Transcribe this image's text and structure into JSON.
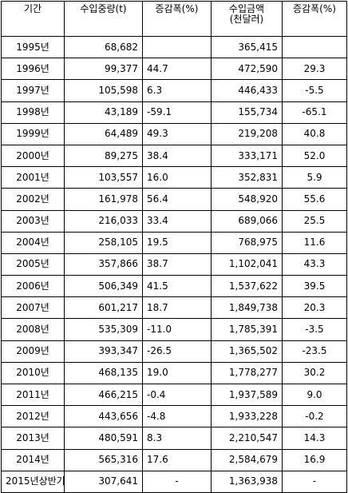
{
  "headers": {
    "year": "기간",
    "weight": "수입중량(t)",
    "weight_change": "증감폭(%)",
    "amount_line1": "수입금액",
    "amount_line2": "(천달러)",
    "amount_change": "증감폭(%)"
  },
  "rows": [
    {
      "year": "1995년",
      "weight": "68,682",
      "weight_change": "",
      "amount": "365,415",
      "amount_change": ""
    },
    {
      "year": "1996년",
      "weight": "99,377",
      "weight_change": "44.7",
      "amount": "472,590",
      "amount_change": "29.3"
    },
    {
      "year": "1997년",
      "weight": "105,598",
      "weight_change": "6.3",
      "amount": "446,433",
      "amount_change": "-5.5"
    },
    {
      "year": "1998년",
      "weight": "43,189",
      "weight_change": "-59.1",
      "amount": "155,734",
      "amount_change": "-65.1"
    },
    {
      "year": "1999년",
      "weight": "64,489",
      "weight_change": "49.3",
      "amount": "219,208",
      "amount_change": "40.8"
    },
    {
      "year": "2000년",
      "weight": "89,275",
      "weight_change": "38.4",
      "amount": "333,171",
      "amount_change": "52.0"
    },
    {
      "year": "2001년",
      "weight": "103,557",
      "weight_change": "16.0",
      "amount": "352,831",
      "amount_change": "5.9"
    },
    {
      "year": "2002년",
      "weight": "161,978",
      "weight_change": "56.4",
      "amount": "548,920",
      "amount_change": "55.6"
    },
    {
      "year": "2003년",
      "weight": "216,033",
      "weight_change": "33.4",
      "amount": "689,066",
      "amount_change": "25.5"
    },
    {
      "year": "2004년",
      "weight": "258,105",
      "weight_change": "19.5",
      "amount": "768,975",
      "amount_change": "11.6"
    },
    {
      "year": "2005년",
      "weight": "357,866",
      "weight_change": "38.7",
      "amount": "1,102,041",
      "amount_change": "43.3"
    },
    {
      "year": "2006년",
      "weight": "506,349",
      "weight_change": "41.5",
      "amount": "1,537,622",
      "amount_change": "39.5"
    },
    {
      "year": "2007년",
      "weight": "601,217",
      "weight_change": "18.7",
      "amount": "1,849,738",
      "amount_change": "20.3"
    },
    {
      "year": "2008년",
      "weight": "535,309",
      "weight_change": "-11.0",
      "amount": "1,785,391",
      "amount_change": "-3.5"
    },
    {
      "year": "2009년",
      "weight": "393,347",
      "weight_change": "-26.5",
      "amount": "1,365,502",
      "amount_change": "-23.5"
    },
    {
      "year": "2010년",
      "weight": "468,135",
      "weight_change": "19.0",
      "amount": "1,778,277",
      "amount_change": "30.2"
    },
    {
      "year": "2011년",
      "weight": "466,215",
      "weight_change": "-0.4",
      "amount": "1,937,589",
      "amount_change": "9.0"
    },
    {
      "year": "2012년",
      "weight": "443,656",
      "weight_change": "-4.8",
      "amount": "1,933,228",
      "amount_change": "-0.2"
    },
    {
      "year": "2013년",
      "weight": "480,591",
      "weight_change": "8.3",
      "amount": "2,210,547",
      "amount_change": "14.3"
    },
    {
      "year": "2014년",
      "weight": "565,316",
      "weight_change": "17.6",
      "amount": "2,584,679",
      "amount_change": "16.9"
    },
    {
      "year": "2015년상반기",
      "weight": "307,641",
      "weight_change": "-",
      "amount": "1,363,938",
      "amount_change": "-"
    }
  ]
}
